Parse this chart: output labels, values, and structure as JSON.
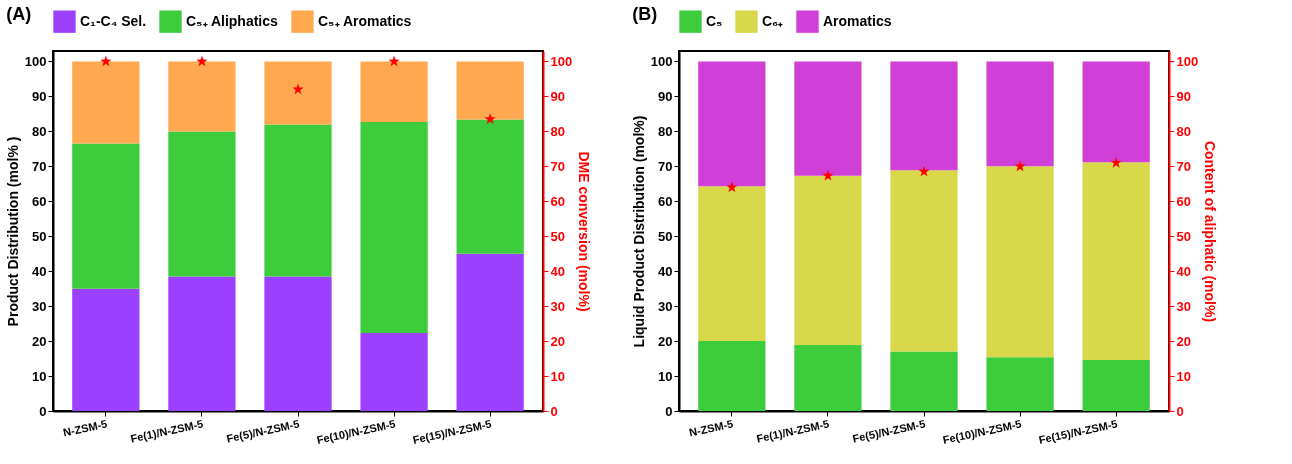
{
  "chart_data": [
    {
      "type": "bar",
      "title": "(A)",
      "categories": [
        "N-ZSM-5",
        "Fe(1)/N-ZSM-5",
        "Fe(5)/N-ZSM-5",
        "Fe(10)/N-ZSM-5",
        "Fe(15)/N-ZSM-5"
      ],
      "stacked": true,
      "ylabel": "Product Distribution (mol% )",
      "y2label": "DME conversion (mol%)",
      "ylim": [
        0,
        103
      ],
      "yticks": [
        0,
        10,
        20,
        30,
        40,
        50,
        60,
        70,
        80,
        90,
        100
      ],
      "y2lim": [
        0,
        103
      ],
      "y2ticks": [
        0,
        10,
        20,
        30,
        40,
        50,
        60,
        70,
        80,
        90,
        100
      ],
      "legend": "top",
      "grid": false,
      "series": [
        {
          "name": "C₁-C₄ Sel.",
          "color": "#9b40ff",
          "values": [
            35,
            38.5,
            38.5,
            22.3,
            45
          ]
        },
        {
          "name": "C₅₊ Aliphatics",
          "color": "#3ccc3c",
          "values": [
            41.5,
            41.5,
            43.5,
            60.4,
            38.4
          ]
        },
        {
          "name": "C₅₊ Aromatics",
          "color": "#ffa850",
          "values": [
            23.5,
            20,
            18,
            17.3,
            16.6
          ]
        },
        {
          "type": "scatter",
          "axis": "y2",
          "color": "#ff0000",
          "marker": "star",
          "values": [
            100,
            100,
            92,
            100,
            83.5
          ]
        }
      ]
    },
    {
      "type": "bar",
      "title": "(B)",
      "categories": [
        "N-ZSM-5",
        "Fe(1)/N-ZSM-5",
        "Fe(5)/N-ZSM-5",
        "Fe(10)/N-ZSM-5",
        "Fe(15)/N-ZSM-5"
      ],
      "stacked": true,
      "ylabel": "Liquid Product Distribution (mol%)",
      "y2label": "Content of aliphatic (mol%)",
      "ylim": [
        0,
        103
      ],
      "yticks": [
        0,
        10,
        20,
        30,
        40,
        50,
        60,
        70,
        80,
        90,
        100
      ],
      "y2lim": [
        0,
        103
      ],
      "y2ticks": [
        0,
        10,
        20,
        30,
        40,
        50,
        60,
        70,
        80,
        90,
        100
      ],
      "legend": "top",
      "grid": false,
      "series": [
        {
          "name": "C₅",
          "color": "#3ccc3c",
          "values": [
            20,
            18.9,
            17,
            15.4,
            14.6
          ]
        },
        {
          "name": "C₆₊",
          "color": "#d8d84a",
          "values": [
            44.3,
            48.4,
            51.9,
            54.6,
            56.6
          ]
        },
        {
          "name": "Aromatics",
          "color": "#d040d8",
          "values": [
            35.7,
            32.7,
            31.1,
            30,
            28.8
          ]
        },
        {
          "type": "scatter",
          "axis": "y2",
          "color": "#ff0000",
          "marker": "star",
          "values": [
            64,
            67.3,
            68.5,
            70,
            71
          ]
        }
      ]
    }
  ]
}
